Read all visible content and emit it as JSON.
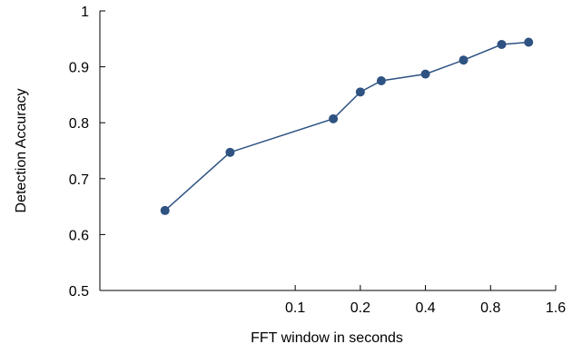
{
  "chart_data": {
    "type": "line",
    "title": "",
    "xlabel": "FFT window in seconds",
    "ylabel": "Detection Accuracy",
    "x_scale": "log2",
    "x": [
      0.025,
      0.05,
      0.15,
      0.2,
      0.25,
      0.4,
      0.6,
      0.9,
      1.2
    ],
    "y": [
      0.643,
      0.747,
      0.807,
      0.855,
      0.875,
      0.887,
      0.912,
      0.94,
      0.944
    ],
    "xticks": [
      0.1,
      0.2,
      0.4,
      0.8,
      1.6
    ],
    "xtick_labels": [
      "0.1",
      "0.2",
      "0.4",
      "0.8",
      "1.6"
    ],
    "xlim": [
      0.0125,
      1.6
    ],
    "yticks": [
      0.5,
      0.6,
      0.7,
      0.8,
      0.9,
      1.0
    ],
    "ytick_labels": [
      "0.5",
      "0.6",
      "0.7",
      "0.8",
      "0.9",
      "1"
    ],
    "ylim": [
      0.5,
      1.0
    ],
    "grid": false,
    "legend": "none",
    "line_color": "#2e5282",
    "marker_color": "#2e5282",
    "axis_color": "#000000"
  }
}
